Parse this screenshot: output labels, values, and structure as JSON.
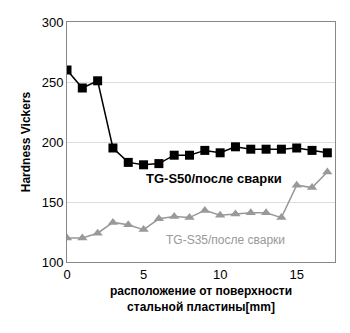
{
  "chart_data": {
    "type": "line",
    "x_label": "расположение от поверхности\nстальной пластины[mm]",
    "y_label": "Hardness Vickers",
    "x": [
      0,
      1,
      2,
      3,
      4,
      5,
      6,
      7,
      8,
      9,
      10,
      11,
      12,
      13,
      14,
      15,
      16,
      17
    ],
    "series": [
      {
        "name": "TG-S50/после сварки",
        "color": "#000000",
        "marker": "square",
        "values": [
          260,
          245,
          251,
          195,
          183,
          181,
          182,
          189,
          189,
          193,
          191,
          196,
          194,
          194,
          194,
          195,
          193,
          191
        ]
      },
      {
        "name": "TG-S35/после сварки",
        "color": "#999999",
        "marker": "triangle-up",
        "values": [
          120,
          120,
          124,
          133,
          131,
          127,
          136,
          138,
          137,
          143,
          139,
          140,
          141,
          141,
          137,
          164,
          162,
          175
        ]
      }
    ],
    "xlim": [
      0,
      17.5
    ],
    "ylim": [
      100,
      300
    ],
    "xticks": [
      0,
      5,
      10,
      15
    ],
    "yticks": [
      100,
      150,
      200,
      250,
      300
    ],
    "grid": true
  }
}
